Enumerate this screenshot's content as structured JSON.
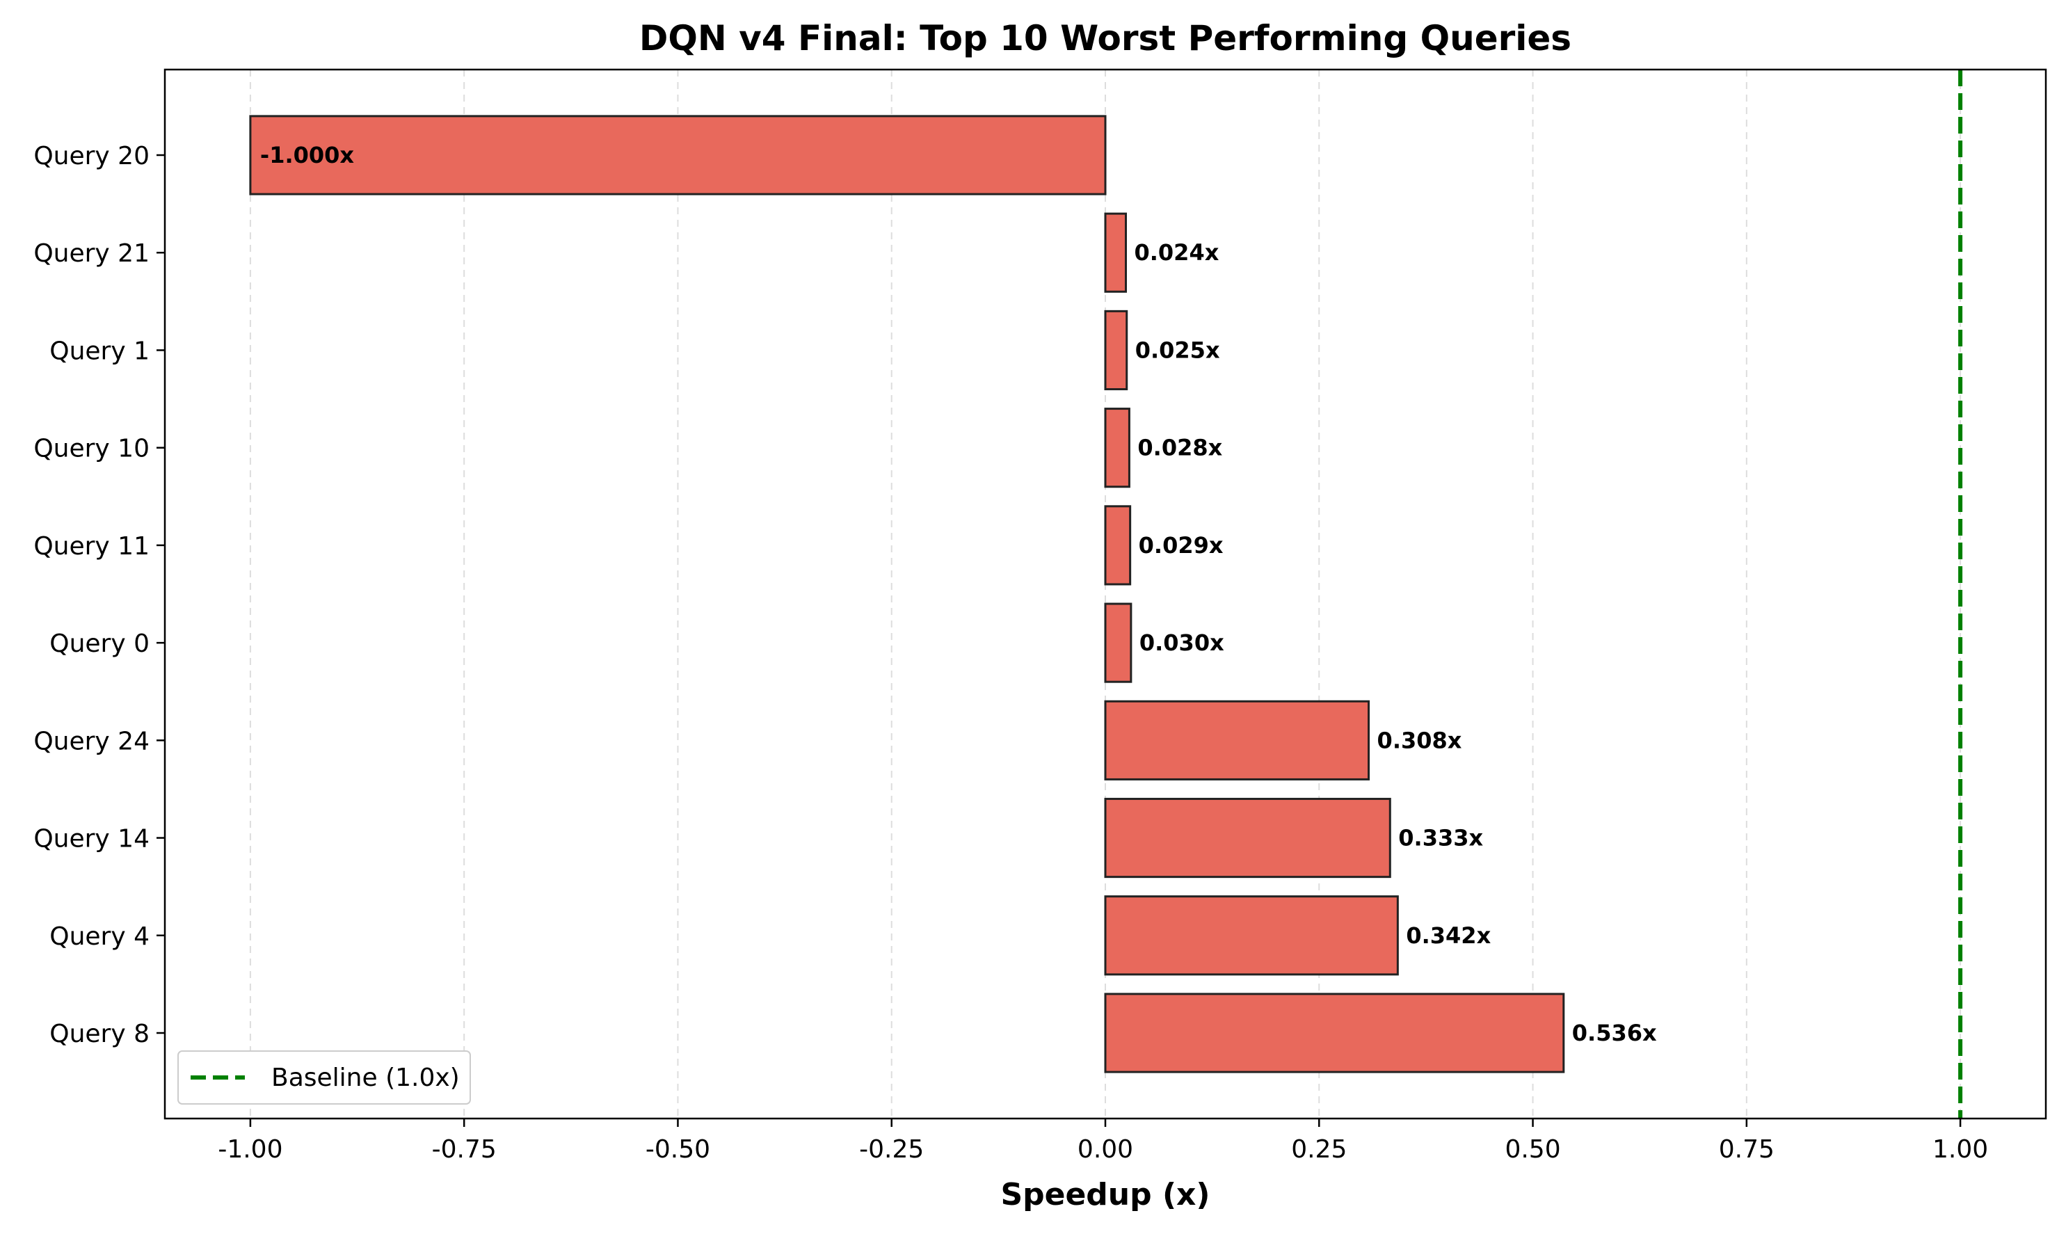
{
  "chart_data": {
    "type": "bar",
    "orientation": "horizontal",
    "title": "DQN v4 Final: Top 10 Worst Performing Queries",
    "xlabel": "Speedup (x)",
    "ylabel": "",
    "categories": [
      "Query 20",
      "Query 21",
      "Query 1",
      "Query 10",
      "Query 11",
      "Query 0",
      "Query 24",
      "Query 14",
      "Query 4",
      "Query 8"
    ],
    "values": [
      -1.0,
      0.024,
      0.025,
      0.028,
      0.029,
      0.03,
      0.308,
      0.333,
      0.342,
      0.536
    ],
    "value_labels": [
      "-1.000x",
      "0.024x",
      "0.025x",
      "0.028x",
      "0.029x",
      "0.030x",
      "0.308x",
      "0.333x",
      "0.342x",
      "0.536x"
    ],
    "xlim": [
      -1.1,
      1.1
    ],
    "xticks": [
      -1.0,
      -0.75,
      -0.5,
      -0.25,
      0.0,
      0.25,
      0.5,
      0.75,
      1.0
    ],
    "xtick_labels": [
      "-1.00",
      "-0.75",
      "-0.50",
      "-0.25",
      "0.00",
      "0.25",
      "0.50",
      "0.75",
      "1.00"
    ],
    "grid": "x",
    "bar_color": "#e8695c",
    "bar_edge_color": "#222222",
    "reference_line": {
      "value": 1.0,
      "label": "Baseline (1.0x)",
      "color": "#008000",
      "style": "dashed"
    },
    "legend": {
      "position": "lower-left",
      "entries": [
        "Baseline (1.0x)"
      ]
    }
  }
}
